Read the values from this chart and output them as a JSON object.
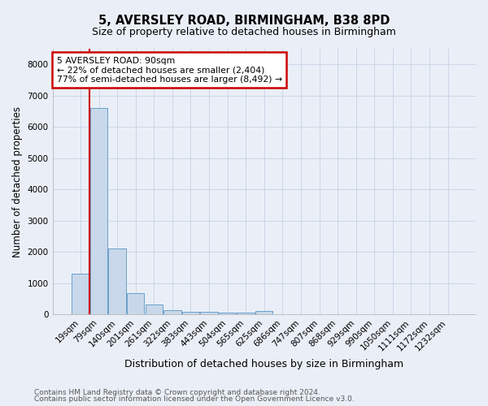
{
  "title_line1": "5, AVERSLEY ROAD, BIRMINGHAM, B38 8PD",
  "title_line2": "Size of property relative to detached houses in Birmingham",
  "xlabel": "Distribution of detached houses by size in Birmingham",
  "ylabel": "Number of detached properties",
  "categories": [
    "19sqm",
    "79sqm",
    "140sqm",
    "201sqm",
    "261sqm",
    "322sqm",
    "383sqm",
    "443sqm",
    "504sqm",
    "565sqm",
    "625sqm",
    "686sqm",
    "747sqm",
    "807sqm",
    "868sqm",
    "929sqm",
    "990sqm",
    "1050sqm",
    "1111sqm",
    "1172sqm",
    "1232sqm"
  ],
  "values": [
    1300,
    6600,
    2100,
    680,
    310,
    140,
    95,
    75,
    65,
    55,
    100,
    0,
    0,
    0,
    0,
    0,
    0,
    0,
    0,
    0,
    0
  ],
  "bar_color": "#c8d8ea",
  "bar_edge_color": "#6a9fca",
  "annotation_text": "5 AVERSLEY ROAD: 90sqm\n← 22% of detached houses are smaller (2,404)\n77% of semi-detached houses are larger (8,492) →",
  "annotation_box_color": "#ffffff",
  "annotation_border_color": "#cc0000",
  "ylim": [
    0,
    8500
  ],
  "yticks": [
    0,
    1000,
    2000,
    3000,
    4000,
    5000,
    6000,
    7000,
    8000
  ],
  "vline_color": "#cc0000",
  "vline_x": 0.5,
  "grid_color": "#ccd6e8",
  "background_color": "#eaeff7",
  "footnote1": "Contains HM Land Registry data © Crown copyright and database right 2024.",
  "footnote2": "Contains public sector information licensed under the Open Government Licence v3.0."
}
